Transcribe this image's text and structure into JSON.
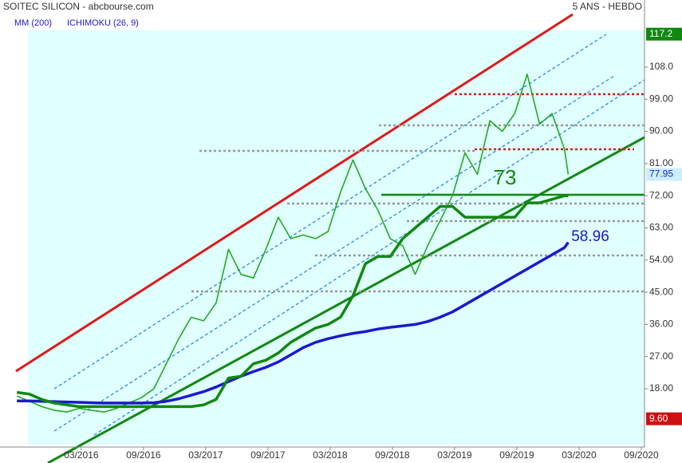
{
  "chart_data": {
    "type": "line",
    "title": "SOITEC SILICON - abcbourse.com",
    "subtitle": "5 ANS - HEBDO",
    "x": [
      2015.65,
      2015.75,
      2015.85,
      2015.95,
      2016.05,
      2016.15,
      2016.25,
      2016.35,
      2016.45,
      2016.55,
      2016.65,
      2016.75,
      2016.85,
      2016.95,
      2017.05,
      2017.15,
      2017.25,
      2017.35,
      2017.45,
      2017.55,
      2017.65,
      2017.75,
      2017.85,
      2017.95,
      2018.05,
      2018.15,
      2018.25,
      2018.35,
      2018.45,
      2018.55,
      2018.65,
      2018.75,
      2018.85,
      2018.95,
      2019.05,
      2019.15,
      2019.25,
      2019.35,
      2019.45,
      2019.55,
      2019.65,
      2019.75,
      2019.85,
      2019.95,
      2020.05,
      2020.08
    ],
    "series": [
      {
        "color": "#22aa22",
        "values": [
          16,
          14.5,
          13,
          12,
          11.5,
          12.5,
          12,
          11.5,
          12.5,
          14,
          15.5,
          18,
          25,
          32,
          38,
          37,
          42,
          57,
          50,
          49,
          57,
          66,
          60,
          61,
          60,
          62,
          73,
          82,
          74,
          68,
          60,
          58,
          50,
          58,
          65,
          72,
          84,
          78,
          93,
          90,
          95,
          106,
          92,
          95,
          85,
          77.95
        ]
      },
      {
        "name": "MM (200)",
        "color": "#1a1acc",
        "values": [
          14.6,
          14.6,
          14.5,
          14.4,
          14.3,
          14.2,
          14.1,
          14,
          14,
          14,
          14,
          14.1,
          14.5,
          15.2,
          16.2,
          17.2,
          18.5,
          20,
          21.5,
          22.8,
          24,
          25.5,
          27.5,
          29.5,
          31,
          32,
          32.8,
          33.5,
          34,
          34.7,
          35.2,
          35.6,
          36,
          36.8,
          38,
          39.5,
          41.5,
          43.5,
          45.5,
          47.5,
          49.5,
          51.5,
          53.5,
          55.5,
          57.5,
          58.96
        ]
      },
      {
        "name": "ICHIMOKU (26, 9)",
        "color": "#118811",
        "values": [
          17,
          16.5,
          15,
          14,
          13.5,
          13,
          13,
          13,
          13,
          13,
          13,
          13,
          13,
          13,
          13,
          13.5,
          15,
          21,
          21.5,
          25,
          26,
          28,
          31,
          33,
          35,
          36,
          38,
          44,
          53,
          55,
          55,
          60,
          63,
          66,
          69,
          69,
          66,
          66,
          66,
          66,
          66,
          70,
          70,
          71,
          72,
          72
        ]
      }
    ],
    "xlim": [
      2015.61,
      2020.693
    ],
    "xticks": [
      {
        "value": 2016.167,
        "label": "03/2016"
      },
      {
        "value": 2016.667,
        "label": "09/2016"
      },
      {
        "value": 2017.167,
        "label": "03/2017"
      },
      {
        "value": 2017.667,
        "label": "09/2017"
      },
      {
        "value": 2018.167,
        "label": "03/2018"
      },
      {
        "value": 2018.667,
        "label": "09/2018"
      },
      {
        "value": 2019.167,
        "label": "03/2019"
      },
      {
        "value": 2019.667,
        "label": "09/2019"
      },
      {
        "value": 2020.167,
        "label": "03/2020"
      },
      {
        "value": 2020.667,
        "label": "09/2020"
      }
    ],
    "ylim": [
      1.7,
      126.75
    ],
    "yticks": [
      {
        "value": 18,
        "label": "18.00"
      },
      {
        "value": 27,
        "label": "27.00"
      },
      {
        "value": 36,
        "label": "36.00"
      },
      {
        "value": 45,
        "label": "45.00"
      },
      {
        "value": 54,
        "label": "54.00"
      },
      {
        "value": 63,
        "label": "63.00"
      },
      {
        "value": 72,
        "label": "72.00"
      },
      {
        "value": 81,
        "label": "81.00"
      },
      {
        "value": 90,
        "label": "90.00"
      },
      {
        "value": 99,
        "label": "99.00"
      },
      {
        "value": 108,
        "label": "108.0"
      }
    ],
    "price_labels": [
      {
        "value": 117.2,
        "label": "117.2",
        "color": "#118811"
      },
      {
        "value": 77.95,
        "label": "77.95",
        "color": "#cceeff"
      },
      {
        "value": 9.6,
        "label": "9.60",
        "color": "#cc1111"
      }
    ],
    "annotations": [
      {
        "text": "73",
        "color": "#118811"
      },
      {
        "text": "58.96",
        "color": "#1a1acc"
      }
    ]
  }
}
